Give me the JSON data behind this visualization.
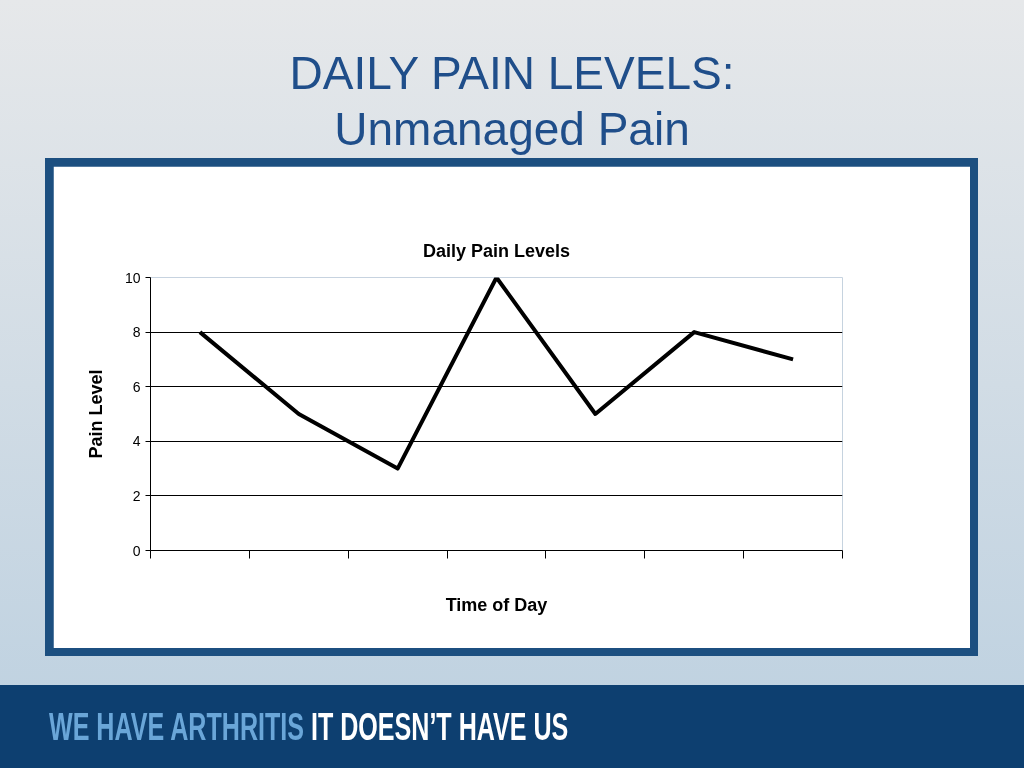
{
  "chart_data": {
    "type": "line",
    "title": "DAILY PAIN LEVELS:\nUnmanaged Pain",
    "subtitle": "Daily Pain Levels",
    "xlabel": "Time of Day",
    "ylabel": "Pain Level",
    "categories": [
      null,
      null,
      null,
      null,
      null,
      null,
      null
    ],
    "series": [
      {
        "color": "#000000",
        "values": [
          8,
          5,
          3,
          10,
          5,
          8,
          7
        ]
      }
    ],
    "ylim": [
      0,
      10
    ],
    "yticks": [
      0,
      2,
      4,
      6,
      8,
      10
    ],
    "grid": "y",
    "tick_labels": "y",
    "line_style": "solid",
    "annotations": [
      "WE HAVE ARTHRITIS",
      "IT DOESN’T HAVE US"
    ]
  }
}
